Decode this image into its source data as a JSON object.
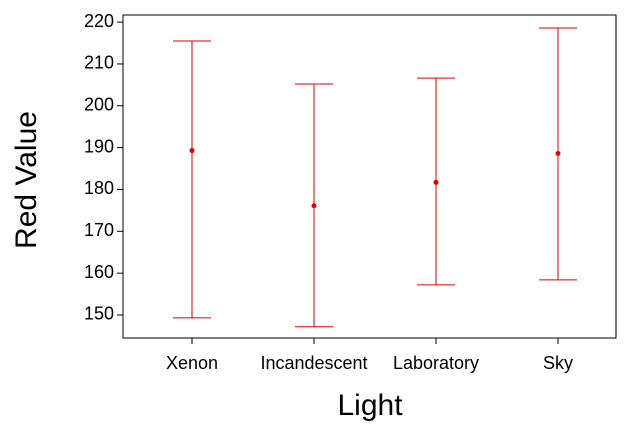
{
  "chart_data": {
    "type": "errorbar",
    "x_label": "Light",
    "y_label": "Red Value",
    "categories": [
      "Xenon",
      "Incandescent",
      "Laboratory",
      "Sky"
    ],
    "series": [
      {
        "color": "#e00000",
        "values": [
          189.3,
          176.1,
          181.7,
          188.6
        ],
        "lower": [
          149.3,
          147.2,
          157.2,
          158.4
        ],
        "upper": [
          215.5,
          205.2,
          206.6,
          218.6
        ]
      }
    ],
    "ylim": [
      144.5,
      221.7
    ],
    "yticks": [
      150,
      160,
      170,
      180,
      190,
      200,
      210,
      220
    ]
  }
}
